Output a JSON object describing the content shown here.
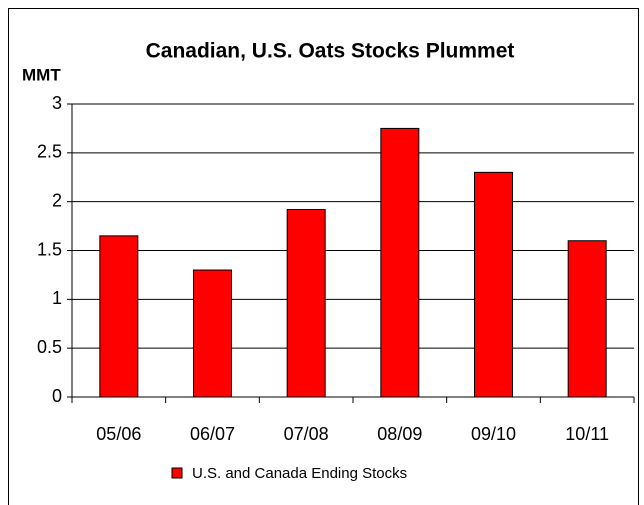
{
  "chart_data": {
    "type": "bar",
    "title": "Canadian, U.S. Oats Stocks Plummet",
    "y_label": "MMT",
    "categories": [
      "05/06",
      "06/07",
      "07/08",
      "08/09",
      "09/10",
      "10/11"
    ],
    "series": [
      {
        "name": "U.S. and Canada Ending Stocks",
        "color": "#ff0000",
        "values": [
          1.65,
          1.3,
          1.92,
          2.75,
          2.3,
          1.6
        ]
      }
    ],
    "ylim": [
      0,
      3
    ],
    "yticks": [
      0,
      0.5,
      1,
      1.5,
      2,
      2.5,
      3
    ],
    "grid": true,
    "legend": "bottom"
  }
}
